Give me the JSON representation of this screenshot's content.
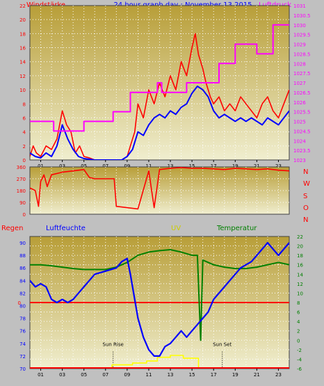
{
  "header": {
    "left_label": "Windstärke",
    "title": "24 hour graph day : November 13 2015",
    "right_label": "Luftdruck"
  },
  "colors": {
    "background": "#c0c0c0",
    "plot_top": "#b89e38",
    "plot_bottom": "#f0eecf",
    "wind": "#ff0000",
    "wind_avg": "#0000ff",
    "pressure": "#ff00ff",
    "direction": "#ff0000",
    "humidity": "#0000ff",
    "temperature": "#008000",
    "rain": "#ff0000",
    "uv": "#ffff00",
    "green_label": "#008000",
    "axis_text": "#000000"
  },
  "chart_data": [
    {
      "type": "line",
      "name": "wind-pressure",
      "x_ticks": [
        "01",
        "03",
        "05",
        "07",
        "09",
        "11",
        "13",
        "15",
        "17",
        "19",
        "21",
        "23"
      ],
      "x_range": [
        0,
        24
      ],
      "left_axis": {
        "label": "Windstärke",
        "range": [
          0,
          22
        ],
        "ticks": [
          "0",
          "2",
          "4",
          "6",
          "8",
          "10",
          "12",
          "14",
          "16",
          "18",
          "20",
          "22"
        ]
      },
      "right_axis": {
        "label": "Luftdruck",
        "range": [
          1023,
          1031
        ],
        "ticks": [
          "1023",
          "1023.5",
          "1024",
          "1024.5",
          "1025",
          "1025.5",
          "1026",
          "1026.5",
          "1027",
          "1027.5",
          "1028",
          "1028.5",
          "1029",
          "1029.5",
          "1030",
          "1030.5",
          "1031"
        ]
      },
      "grid": true,
      "series": [
        {
          "axis": "left",
          "x": [
            0,
            0.3,
            0.6,
            1,
            1.5,
            2,
            2.5,
            3,
            3.4,
            3.8,
            4.2,
            4.6,
            5,
            5.5,
            6,
            7,
            8,
            8.5,
            9,
            9.3,
            9.7,
            10,
            10.5,
            11,
            11.5,
            12,
            12.5,
            13,
            13.5,
            14,
            14.5,
            15,
            15.3,
            15.6,
            16,
            16.3,
            16.7,
            17,
            17.5,
            18,
            18.5,
            19,
            19.5,
            20,
            20.5,
            21,
            21.5,
            22,
            22.5,
            23,
            23.5,
            24
          ],
          "values": [
            0.5,
            2,
            1,
            0.5,
            2,
            1.5,
            3,
            7,
            5,
            4,
            1,
            2,
            0.5,
            0.3,
            0,
            0,
            0,
            0,
            0.5,
            2,
            4,
            8,
            6,
            10,
            8,
            11,
            9,
            12,
            10,
            14,
            12,
            16,
            18,
            15,
            13,
            11,
            9,
            8,
            9,
            7,
            8,
            7,
            9,
            8,
            7,
            6,
            8,
            9,
            7,
            6,
            8,
            10
          ]
        },
        {
          "axis": "left",
          "x": [
            0,
            0.5,
            1,
            1.5,
            2,
            2.5,
            3,
            3.5,
            4,
            4.5,
            5,
            6,
            7,
            8,
            8.5,
            9,
            9.5,
            10,
            10.5,
            11,
            11.5,
            12,
            12.5,
            13,
            13.5,
            14,
            14.5,
            15,
            15.5,
            16,
            16.5,
            17,
            17.5,
            18,
            18.5,
            19,
            19.5,
            20,
            20.5,
            21,
            21.5,
            22,
            22.5,
            23,
            23.5,
            24
          ],
          "values": [
            1,
            0.5,
            0.3,
            1,
            0.5,
            2,
            5,
            3,
            1.5,
            0.5,
            0.2,
            0,
            0,
            0,
            0,
            0.5,
            1.5,
            4,
            3.5,
            5,
            6,
            6.5,
            6,
            7,
            6.5,
            7.5,
            8,
            9.5,
            10.5,
            10,
            9,
            7,
            6,
            6.5,
            6,
            5.5,
            6,
            5.5,
            6,
            5.5,
            5,
            6,
            5.5,
            5,
            6,
            7
          ]
        },
        {
          "axis": "right",
          "x": [
            0,
            2.2,
            2.2,
            5,
            5,
            7.7,
            7.7,
            9.3,
            9.3,
            11.8,
            11.8,
            12.2,
            12.2,
            14.5,
            14.5,
            17.5,
            17.5,
            19,
            19,
            21,
            21,
            22.5,
            22.5,
            24
          ],
          "values": [
            1025,
            1025,
            1024.5,
            1024.5,
            1025,
            1025,
            1025.5,
            1025.5,
            1026.5,
            1026.5,
            1027,
            1027,
            1026.5,
            1026.5,
            1027,
            1027,
            1028,
            1028,
            1029,
            1029,
            1028.5,
            1028.5,
            1030,
            1030
          ]
        }
      ]
    },
    {
      "type": "line",
      "name": "wind-direction",
      "x_range": [
        0,
        24
      ],
      "left_axis": {
        "range": [
          0,
          360
        ],
        "ticks": [
          "0",
          "90",
          "180",
          "270",
          "360"
        ]
      },
      "right_labels": [
        "N",
        "W",
        "S",
        "O",
        "N"
      ],
      "grid": true,
      "series": [
        {
          "x": [
            0,
            0.5,
            0.8,
            1,
            1.3,
            1.6,
            2,
            3,
            4,
            5,
            5.5,
            6,
            7,
            7.8,
            8,
            9,
            10,
            11,
            11.5,
            12,
            13,
            14,
            15,
            16,
            17,
            18,
            19,
            20,
            21,
            22,
            23,
            24
          ],
          "values": [
            200,
            180,
            60,
            250,
            300,
            210,
            300,
            320,
            330,
            340,
            280,
            270,
            270,
            270,
            60,
            50,
            40,
            330,
            50,
            340,
            350,
            355,
            350,
            350,
            345,
            340,
            350,
            345,
            340,
            345,
            335,
            330
          ]
        }
      ]
    },
    {
      "type": "line",
      "name": "humidity-temperature",
      "labels": {
        "rain": "Regen",
        "humidity": "Luftfeuchte",
        "uv": "UV",
        "temperature": "Temperatur"
      },
      "x_range": [
        0,
        24
      ],
      "left_axis": {
        "label": "Luftfeuchte",
        "range": [
          70,
          91
        ],
        "ticks": [
          "70",
          "72",
          "74",
          "76",
          "78",
          "80",
          "82",
          "84",
          "86",
          "88",
          "90"
        ]
      },
      "rain_axis": {
        "label": "Regen",
        "value": "0"
      },
      "right_axis": {
        "label": "Temperatur",
        "range": [
          -6,
          22
        ],
        "ticks": [
          "-6",
          "-4",
          "-2",
          "0",
          "2",
          "4",
          "6",
          "8",
          "10",
          "12",
          "14",
          "16",
          "18",
          "20",
          "22"
        ]
      },
      "annotations": [
        {
          "text": "Sun Rise",
          "x": 7.7
        },
        {
          "text": "Sun Set",
          "x": 17.8
        }
      ],
      "grid": true,
      "series": [
        {
          "axis": "left",
          "x": [
            0,
            0.5,
            1,
            1.5,
            2,
            2.5,
            3,
            3.5,
            4,
            4.5,
            5,
            5.5,
            6,
            7,
            8,
            8.5,
            9,
            9.3,
            9.6,
            10,
            10.5,
            11,
            11.5,
            12,
            12.5,
            13,
            13.5,
            14,
            14.5,
            15,
            15.5,
            16,
            16.5,
            17,
            17.5,
            18,
            18.5,
            19,
            19.5,
            20,
            20.5,
            21,
            21.5,
            22,
            22.5,
            23,
            23.5,
            24
          ],
          "values": [
            84,
            83,
            83.5,
            83,
            81,
            80.5,
            81,
            80.5,
            81,
            82,
            83,
            84,
            85,
            85.5,
            86,
            87,
            87.5,
            85,
            82,
            78,
            75,
            73,
            72,
            72,
            73.5,
            74,
            75,
            76,
            75,
            76,
            77,
            78,
            79,
            81,
            82,
            83,
            84,
            85,
            86,
            86.5,
            87,
            88,
            89,
            90,
            89,
            88,
            89,
            90
          ]
        },
        {
          "axis": "right",
          "x": [
            0,
            1,
            2,
            3,
            4,
            5,
            6,
            7,
            8,
            9,
            10,
            11,
            12,
            13,
            14,
            15,
            15.5,
            15.8,
            16,
            16.5,
            17,
            18,
            19,
            20,
            21,
            22,
            23,
            24
          ],
          "values": [
            16,
            16,
            15.8,
            15.5,
            15.2,
            15,
            15,
            15,
            15.5,
            16.5,
            18,
            18.7,
            19,
            19.2,
            18.7,
            18,
            18,
            0,
            17,
            16.5,
            16,
            15.5,
            15.2,
            15.2,
            15.5,
            16,
            16.5,
            16
          ]
        },
        {
          "axis": "uv",
          "x": [
            0,
            7.6,
            7.6,
            9.5,
            9.5,
            10.8,
            10.8,
            11.8,
            11.8,
            13,
            13,
            14.2,
            14.2,
            15.6,
            15.6,
            24
          ],
          "values": [
            -6,
            -6,
            -5.2,
            -5.2,
            -4.8,
            -4.8,
            -4.4,
            -4.4,
            -3.6,
            -3.6,
            -3.2,
            -3.2,
            -3.8,
            -3.8,
            -6,
            -6
          ]
        }
      ]
    }
  ]
}
